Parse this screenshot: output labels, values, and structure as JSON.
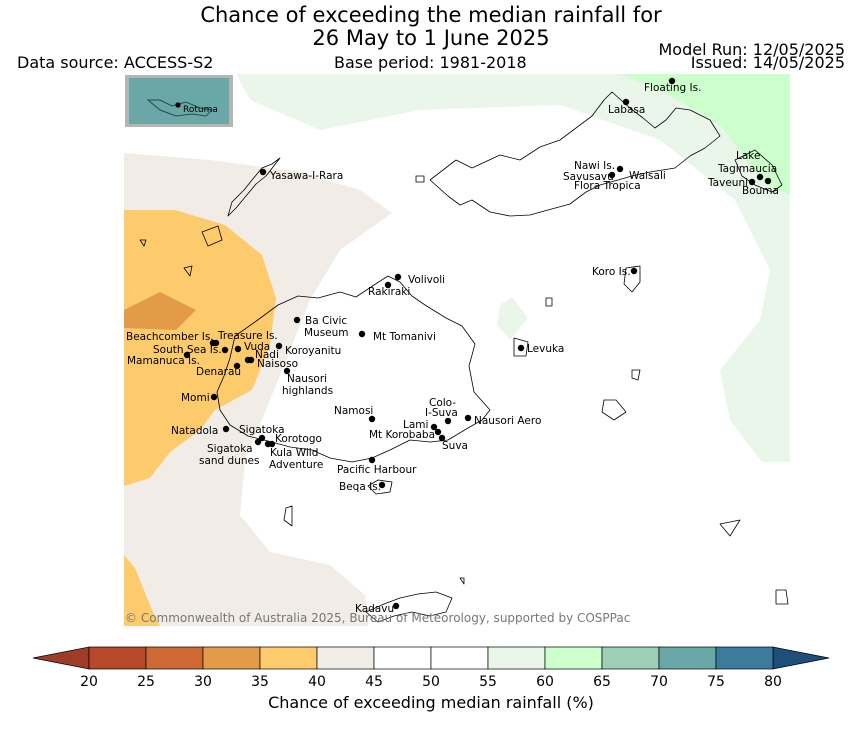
{
  "title_line1": "Chance of exceeding the median rainfall for",
  "title_line2": "26 May to 1 June 2025",
  "data_source": "Data source: ACCESS-S2",
  "base_period": "Base period: 1981-2018",
  "model_run": "Model Run: 12/05/2025",
  "issued": "Issued: 14/05/2025",
  "inset_label": "Rotuma",
  "copyright": "© Commonwealth of Australia 2025, Bureau of Meteorology, supported by COSPPac",
  "colorbar": {
    "title": "Chance of exceeding median rainfall (%)",
    "ticks": [
      "20",
      "25",
      "30",
      "35",
      "40",
      "45",
      "50",
      "55",
      "60",
      "65",
      "70",
      "75",
      "80"
    ],
    "colors": [
      "#b5492a",
      "#cf6934",
      "#e39a49",
      "#fdcb6c",
      "#f1ece6",
      "#ffffff",
      "#ffffff",
      "#eaf6ea",
      "#ccffcc",
      "#9ccfb6",
      "#6aa7a7",
      "#3d7b9c"
    ],
    "under_color": "#9e3d27",
    "over_color": "#1e4e7a"
  },
  "places": [
    {
      "name": "Floating Is."
    },
    {
      "name": "Labasa"
    },
    {
      "name": "Nawi Is."
    },
    {
      "name": "Savusavu"
    },
    {
      "name": "Waisali"
    },
    {
      "name": "Flora Tropica"
    },
    {
      "name": "Lake"
    },
    {
      "name": "Tagimaucia"
    },
    {
      "name": "Taveuni"
    },
    {
      "name": "Bouma"
    },
    {
      "name": "Yasawa-I-Rara"
    },
    {
      "name": "Koro Is."
    },
    {
      "name": "Volivoli"
    },
    {
      "name": "Rakiraki"
    },
    {
      "name": "Ba Civic"
    },
    {
      "name": "Museum"
    },
    {
      "name": "Mt Tomanivi"
    },
    {
      "name": "Levuka"
    },
    {
      "name": "Beachcomber Is."
    },
    {
      "name": "Treasure Is."
    },
    {
      "name": "South Sea Is."
    },
    {
      "name": "Vuda"
    },
    {
      "name": "Koroyanitu"
    },
    {
      "name": "Nadi"
    },
    {
      "name": "Mamanuca Is."
    },
    {
      "name": "Naisoso"
    },
    {
      "name": "Denarau"
    },
    {
      "name": "Nausori"
    },
    {
      "name": "highlands"
    },
    {
      "name": "Momi"
    },
    {
      "name": "Namosi"
    },
    {
      "name": "Colo-"
    },
    {
      "name": "I-Suva"
    },
    {
      "name": "Lami"
    },
    {
      "name": "Nausori Aero"
    },
    {
      "name": "Mt Korobaba"
    },
    {
      "name": "Suva"
    },
    {
      "name": "Natadola"
    },
    {
      "name": "Sigatoka"
    },
    {
      "name": "Korotogo"
    },
    {
      "name": "Sigatoka"
    },
    {
      "name": "sand dunes"
    },
    {
      "name": "Kula Wild"
    },
    {
      "name": "Adventure"
    },
    {
      "name": "Pacific Harbour"
    },
    {
      "name": "Beqa Is."
    },
    {
      "name": "Kadavu"
    }
  ]
}
